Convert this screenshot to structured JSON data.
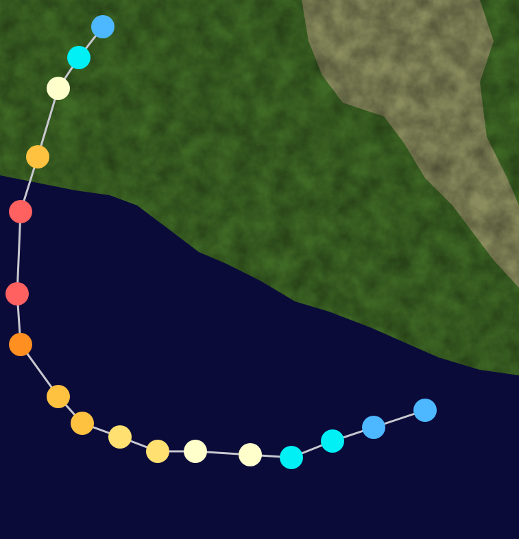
{
  "map": {
    "ocean_color": "#0b0b3a",
    "land_color": "#3f6a25",
    "highland_color": "#a69a72",
    "track_line_color": "#c8c8d0"
  },
  "track": {
    "points": [
      {
        "color": "#4db8ff"
      },
      {
        "color": "#4db8ff"
      },
      {
        "color": "#00f0f5"
      },
      {
        "color": "#00f0f5"
      },
      {
        "color": "#ffffcc"
      },
      {
        "color": "#ffffcc"
      },
      {
        "color": "#ffe070"
      },
      {
        "color": "#ffe070"
      },
      {
        "color": "#ffc140"
      },
      {
        "color": "#ffc140"
      },
      {
        "color": "#ff8f20"
      },
      {
        "color": "#ff6060"
      },
      {
        "color": "#ff6060"
      },
      {
        "color": "#ffc140"
      },
      {
        "color": "#ffffcc"
      },
      {
        "color": "#00f0f5"
      },
      {
        "color": "#4db8ff"
      }
    ]
  }
}
